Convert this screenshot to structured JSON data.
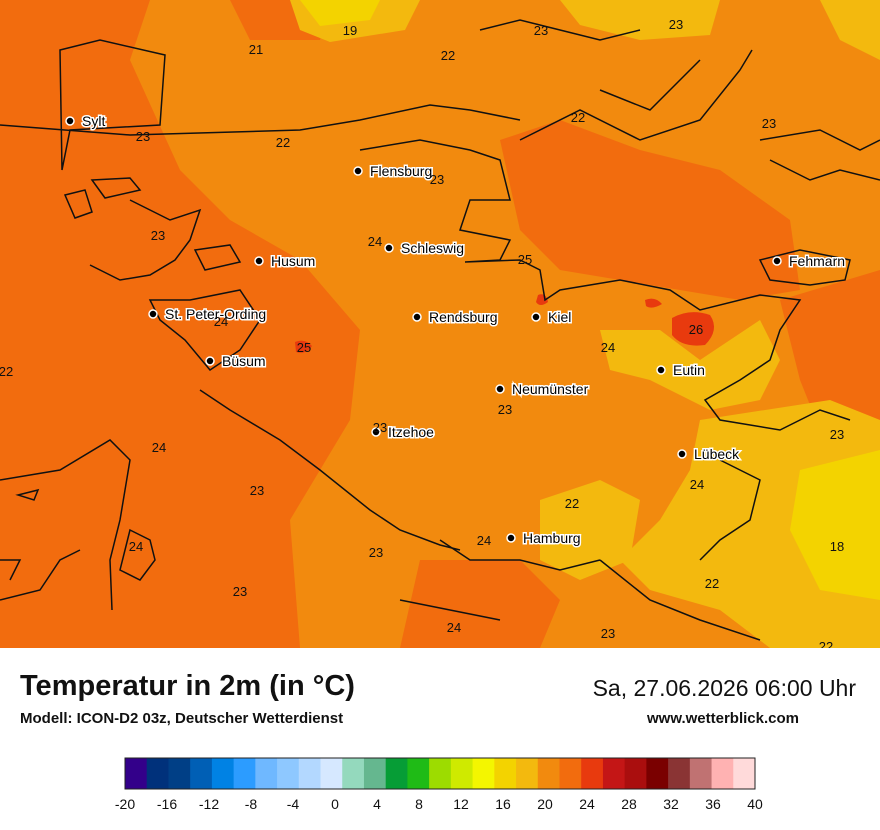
{
  "header": {
    "title": "Temperatur in 2m (in °C)",
    "model": "Modell: ICON-D2 03z, Deutscher Wetterdienst",
    "datetime": "Sa, 27.06.2026 06:00 Uhr",
    "website": "www.wetterblick.com"
  },
  "map": {
    "cities": [
      {
        "name": "Sylt"
      },
      {
        "name": "Flensburg"
      },
      {
        "name": "Schleswig"
      },
      {
        "name": "Husum"
      },
      {
        "name": "Fehmarn"
      },
      {
        "name": "St. Peter-Ording"
      },
      {
        "name": "Rendsburg"
      },
      {
        "name": "Kiel"
      },
      {
        "name": "Büsum"
      },
      {
        "name": "Eutin"
      },
      {
        "name": "Neumünster"
      },
      {
        "name": "Itzehoe"
      },
      {
        "name": "Lübeck"
      },
      {
        "name": "Hamburg"
      }
    ],
    "temperature_labels": [
      "19",
      "21",
      "22",
      "23",
      "23",
      "23",
      "22",
      "22",
      "23",
      "23",
      "24",
      "25",
      "23",
      "24",
      "25",
      "26",
      "24",
      "22",
      "23",
      "23",
      "24",
      "23",
      "24",
      "22",
      "24",
      "23",
      "24",
      "23",
      "18",
      "22",
      "23",
      "23",
      "24",
      "22"
    ]
  },
  "legend": {
    "ticks": [
      "-20",
      "-16",
      "-12",
      "-8",
      "-4",
      "0",
      "4",
      "8",
      "12",
      "16",
      "20",
      "24",
      "28",
      "32",
      "36",
      "40"
    ],
    "colors": [
      "#33008a",
      "#00317b",
      "#003f86",
      "#005fb5",
      "#0082e4",
      "#2c9cff",
      "#6fb8ff",
      "#8ec8ff",
      "#b3d8ff",
      "#d6e8ff",
      "#94d9bd",
      "#65b78f",
      "#069d36",
      "#1fbb16",
      "#9ddc00",
      "#cfea00",
      "#f4f600",
      "#f3d300",
      "#f3b90e",
      "#f28a0e",
      "#f26c0e",
      "#e83a0e",
      "#c41616",
      "#aa0e0e",
      "#7a0000",
      "#8a3434",
      "#c07272",
      "#ffb2b2",
      "#ffdada"
    ]
  }
}
